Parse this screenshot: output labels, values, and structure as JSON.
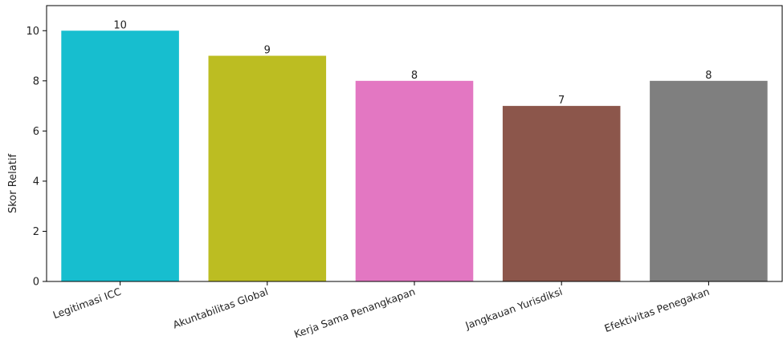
{
  "chart_data": {
    "type": "bar",
    "categories": [
      "Legitimasi ICC",
      "Akuntabilitas Global",
      "Kerja Sama Penangkapan",
      "Jangkauan Yurisdiksi",
      "Efektivitas Penegakan"
    ],
    "values": [
      10,
      9,
      8,
      7,
      8
    ],
    "value_labels": [
      "10",
      "9",
      "8",
      "7",
      "8"
    ],
    "colors": [
      "#17becf",
      "#bcbd22",
      "#e377c2",
      "#8c564b",
      "#7f7f7f"
    ],
    "title": "",
    "xlabel": "",
    "ylabel": "Skor Relatif",
    "ylim": [
      0,
      11
    ],
    "yticks": [
      0,
      2,
      4,
      6,
      8,
      10
    ],
    "ytick_labels": [
      "0",
      "2",
      "4",
      "6",
      "8",
      "10"
    ],
    "grid": false,
    "legend": "none"
  }
}
